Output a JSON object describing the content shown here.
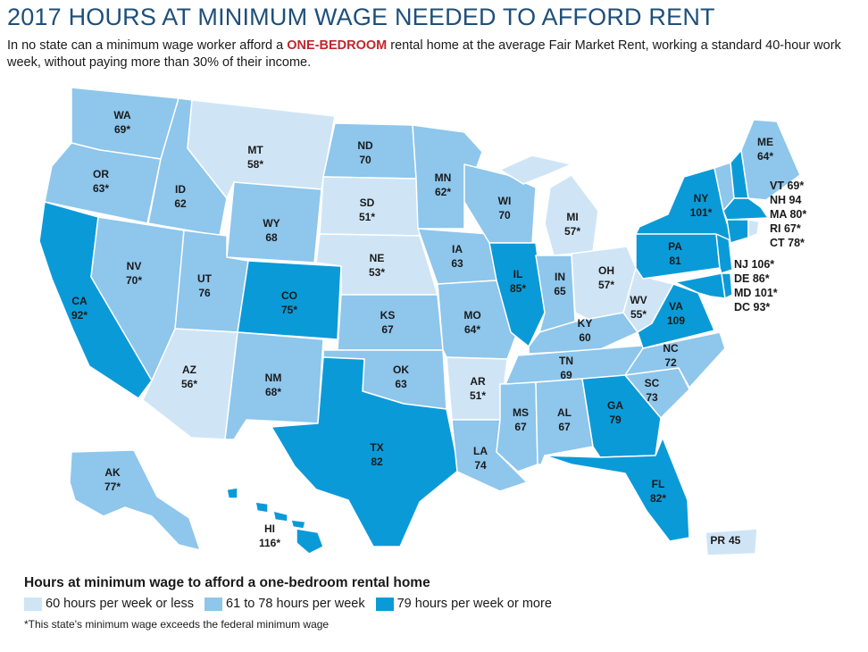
{
  "title": "2017 HOURS AT MINIMUM WAGE NEEDED TO AFFORD RENT",
  "subtitle": {
    "before": "In no state can a minimum wage worker afford a ",
    "highlight": "ONE-BEDROOM",
    "after": " rental home at the average Fair Market Rent, working a standard 40-hour work week, without paying more than 30% of their income."
  },
  "colors": {
    "low": "#cfe5f6",
    "mid": "#8ec6ec",
    "high": "#0b9ad8",
    "border": "#ffffff"
  },
  "legend": {
    "title": "Hours at minimum wage to afford a one-bedroom rental home",
    "items": [
      {
        "label": "60 hours per week or less",
        "color": "#cfe5f6"
      },
      {
        "label": "61 to 78 hours per week",
        "color": "#8ec6ec"
      },
      {
        "label": "79 hours per week or more",
        "color": "#0b9ad8"
      }
    ]
  },
  "footnote": "*This state's minimum wage exceeds the federal minimum wage",
  "states": [
    {
      "abbr": "WA",
      "hours": "69*"
    },
    {
      "abbr": "OR",
      "hours": "63*"
    },
    {
      "abbr": "CA",
      "hours": "92*"
    },
    {
      "abbr": "ID",
      "hours": "62"
    },
    {
      "abbr": "NV",
      "hours": "70*"
    },
    {
      "abbr": "MT",
      "hours": "58*"
    },
    {
      "abbr": "WY",
      "hours": "68"
    },
    {
      "abbr": "UT",
      "hours": "76"
    },
    {
      "abbr": "AZ",
      "hours": "56*"
    },
    {
      "abbr": "CO",
      "hours": "75*"
    },
    {
      "abbr": "NM",
      "hours": "68*"
    },
    {
      "abbr": "ND",
      "hours": "70"
    },
    {
      "abbr": "SD",
      "hours": "51*"
    },
    {
      "abbr": "NE",
      "hours": "53*"
    },
    {
      "abbr": "KS",
      "hours": "67"
    },
    {
      "abbr": "OK",
      "hours": "63"
    },
    {
      "abbr": "TX",
      "hours": "82"
    },
    {
      "abbr": "MN",
      "hours": "62*"
    },
    {
      "abbr": "IA",
      "hours": "63"
    },
    {
      "abbr": "MO",
      "hours": "64*"
    },
    {
      "abbr": "AR",
      "hours": "51*"
    },
    {
      "abbr": "LA",
      "hours": "74"
    },
    {
      "abbr": "WI",
      "hours": "70"
    },
    {
      "abbr": "IL",
      "hours": "85*"
    },
    {
      "abbr": "MS",
      "hours": "67"
    },
    {
      "abbr": "MI",
      "hours": "57*"
    },
    {
      "abbr": "IN",
      "hours": "65"
    },
    {
      "abbr": "KY",
      "hours": "60"
    },
    {
      "abbr": "TN",
      "hours": "69"
    },
    {
      "abbr": "AL",
      "hours": "67"
    },
    {
      "abbr": "OH",
      "hours": "57*"
    },
    {
      "abbr": "WV",
      "hours": "55*"
    },
    {
      "abbr": "GA",
      "hours": "79"
    },
    {
      "abbr": "FL",
      "hours": "82*"
    },
    {
      "abbr": "SC",
      "hours": "73"
    },
    {
      "abbr": "NC",
      "hours": "72"
    },
    {
      "abbr": "VA",
      "hours": "109"
    },
    {
      "abbr": "PA",
      "hours": "81"
    },
    {
      "abbr": "NY",
      "hours": "101*"
    },
    {
      "abbr": "ME",
      "hours": "64*"
    },
    {
      "abbr": "AK",
      "hours": "77*"
    },
    {
      "abbr": "HI",
      "hours": "116*"
    },
    {
      "abbr": "PR",
      "hours": "45"
    }
  ],
  "northeast_list": [
    "VT 69*",
    "NH 94",
    "MA 80*",
    "RI 67*",
    "CT 78*"
  ],
  "midatlantic_list": [
    "NJ 106*",
    "DE 86*",
    "MD 101*",
    "DC 93*"
  ]
}
